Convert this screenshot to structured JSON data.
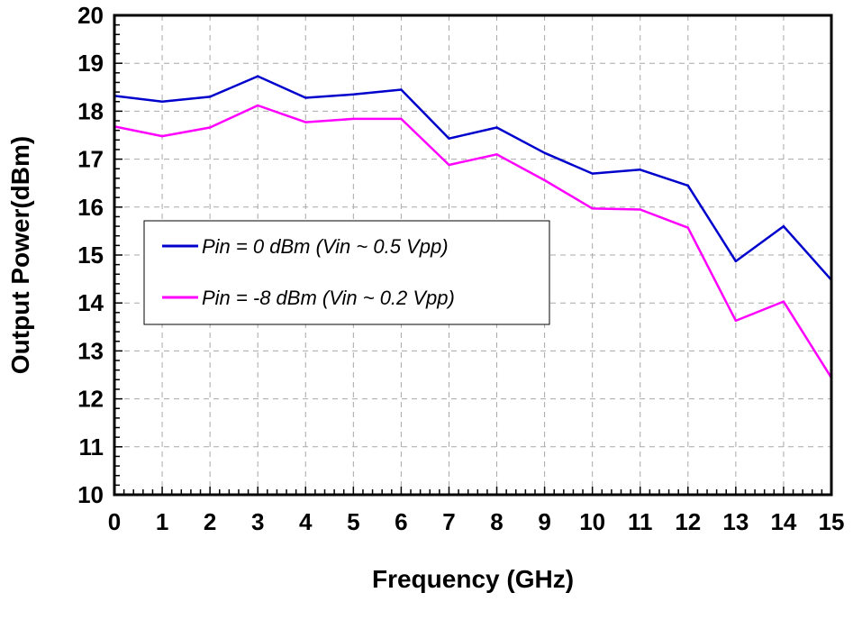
{
  "chart_data": {
    "type": "line",
    "xlabel": "Frequency (GHz)",
    "ylabel": "Output Power(dBm)",
    "xlim": [
      0,
      15
    ],
    "ylim": [
      10,
      20
    ],
    "xticks": [
      0,
      1,
      2,
      3,
      4,
      5,
      6,
      7,
      8,
      9,
      10,
      11,
      12,
      13,
      14,
      15
    ],
    "yticks": [
      10,
      11,
      12,
      13,
      14,
      15,
      16,
      17,
      18,
      19,
      20
    ],
    "grid": true,
    "legend_position": "middle-left",
    "x": [
      0,
      1,
      2,
      3,
      4,
      5,
      6,
      7,
      8,
      9,
      10,
      11,
      12,
      13,
      14,
      15
    ],
    "series": [
      {
        "name": "Pin = 0 dBm (Vin ~ 0.5 Vpp)",
        "color": "#0000cc",
        "values": [
          18.32,
          18.2,
          18.3,
          18.73,
          18.28,
          18.35,
          18.45,
          17.43,
          17.66,
          17.13,
          16.7,
          16.78,
          16.45,
          14.87,
          15.6,
          14.48
        ]
      },
      {
        "name": "Pin = -8 dBm (Vin ~ 0.2 Vpp)",
        "color": "#ff00ff",
        "values": [
          17.68,
          17.48,
          17.66,
          18.12,
          17.77,
          17.84,
          17.84,
          16.88,
          17.1,
          16.56,
          15.97,
          15.95,
          15.57,
          13.63,
          14.03,
          12.44
        ]
      }
    ]
  }
}
